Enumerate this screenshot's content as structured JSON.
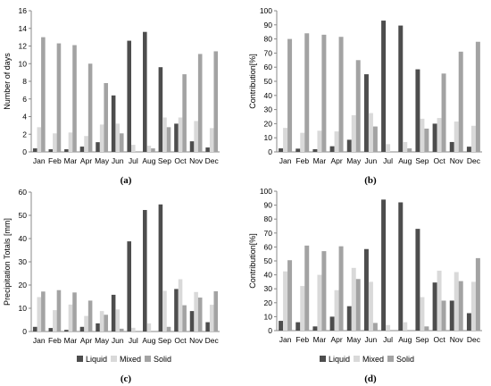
{
  "colors": {
    "Liquid": "#4d4d4d",
    "Mixed": "#d9d9d9",
    "Solid": "#a3a3a3",
    "axis": "#888888"
  },
  "legend": {
    "items": [
      "Liquid",
      "Mixed",
      "Solid"
    ],
    "placement": "bottom-center"
  },
  "chart_data": [
    {
      "panel": "(a)",
      "type": "bar",
      "categories": [
        "Jan",
        "Feb",
        "Mar",
        "Apr",
        "May",
        "Jun",
        "Jul",
        "Aug",
        "Sep",
        "Oct",
        "Nov",
        "Dec"
      ],
      "ylabel": "Number of days",
      "ylim": [
        0,
        16
      ],
      "yticks": [
        0,
        2,
        4,
        6,
        8,
        10,
        12,
        14,
        16
      ],
      "series": [
        {
          "name": "Liquid",
          "values": [
            0.4,
            0.3,
            0.3,
            0.6,
            1.1,
            6.4,
            12.6,
            13.6,
            9.6,
            3.2,
            1.2,
            0.5
          ]
        },
        {
          "name": "Mixed",
          "values": [
            2.8,
            2.1,
            2.2,
            1.8,
            3.1,
            3.2,
            0.8,
            0.7,
            3.9,
            3.9,
            3.5,
            2.7
          ]
        },
        {
          "name": "Solid",
          "values": [
            13.0,
            12.3,
            12.1,
            10.0,
            7.8,
            2.1,
            0.0,
            0.4,
            2.8,
            8.8,
            11.1,
            11.4
          ]
        }
      ]
    },
    {
      "panel": "(b)",
      "type": "bar",
      "categories": [
        "Jan",
        "Feb",
        "Mar",
        "Apr",
        "May",
        "Jun",
        "Jul",
        "Aug",
        "Sep",
        "Oct",
        "Nov",
        "Dec"
      ],
      "ylabel": "Contribution[%]",
      "ylim": [
        0,
        100
      ],
      "yticks": [
        0,
        10,
        20,
        30,
        40,
        50,
        60,
        70,
        80,
        90,
        100
      ],
      "series": [
        {
          "name": "Liquid",
          "values": [
            2.5,
            2.3,
            1.9,
            4.0,
            8.6,
            55,
            93,
            89.5,
            58.5,
            20,
            7.0,
            3.7
          ]
        },
        {
          "name": "Mixed",
          "values": [
            17,
            13.5,
            15,
            14.5,
            26,
            27.5,
            5.5,
            7.0,
            23.5,
            24,
            21.5,
            18.5
          ]
        },
        {
          "name": "Solid",
          "values": [
            80,
            84,
            83,
            81.5,
            65,
            18,
            0,
            2.5,
            16.5,
            55.5,
            71,
            78
          ]
        }
      ]
    },
    {
      "panel": "(c)",
      "type": "bar",
      "categories": [
        "Jan",
        "Feb",
        "Mar",
        "Apr",
        "May",
        "Jun",
        "Jul",
        "Aug",
        "Sep",
        "Oct",
        "Nov",
        "Dec"
      ],
      "ylabel": "Precipitation Totals [mm]",
      "ylim": [
        0,
        60
      ],
      "yticks": [
        0,
        10,
        20,
        30,
        40,
        50,
        60
      ],
      "series": [
        {
          "name": "Liquid",
          "values": [
            2.0,
            1.5,
            0.7,
            2.0,
            3.5,
            15.8,
            38.8,
            52.3,
            54.7,
            18.3,
            8.8,
            4.0
          ]
        },
        {
          "name": "Mixed",
          "values": [
            14.8,
            9.2,
            11.6,
            6.7,
            8.8,
            9.5,
            1.6,
            3.5,
            17.5,
            22.5,
            17.0,
            11.5
          ]
        },
        {
          "name": "Solid",
          "values": [
            17.2,
            17.8,
            16.8,
            13.3,
            7.2,
            1.2,
            0.0,
            0.0,
            2.0,
            11.3,
            14.6,
            17.3
          ]
        }
      ]
    },
    {
      "panel": "(d)",
      "type": "bar",
      "categories": [
        "Jan",
        "Feb",
        "Mar",
        "Apr",
        "May",
        "Jun",
        "Jul",
        "Aug",
        "Sep",
        "Oct",
        "Nov",
        "Dec"
      ],
      "ylabel": "Contribution[%]",
      "ylim": [
        0,
        100
      ],
      "yticks": [
        0,
        10,
        20,
        30,
        40,
        50,
        60,
        70,
        80,
        90,
        100
      ],
      "series": [
        {
          "name": "Liquid",
          "values": [
            7,
            6,
            3,
            10,
            17.5,
            58.5,
            94,
            92,
            73,
            34.5,
            21.5,
            12.5
          ]
        },
        {
          "name": "Mixed",
          "values": [
            42.5,
            32,
            40,
            29,
            45,
            35,
            4,
            6,
            24,
            43,
            42,
            35
          ]
        },
        {
          "name": "Solid",
          "values": [
            50.5,
            61,
            57,
            60.5,
            37,
            5.5,
            0,
            0,
            3,
            21.5,
            35.5,
            52
          ]
        }
      ]
    }
  ]
}
